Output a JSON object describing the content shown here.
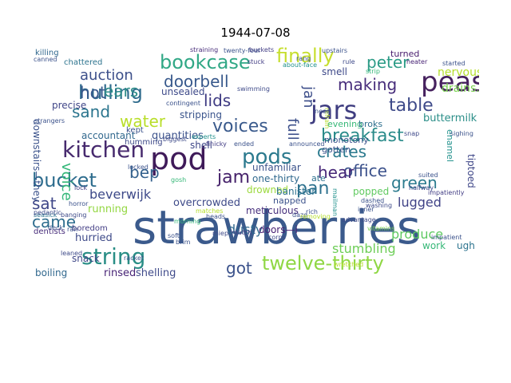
{
  "title": "1944-07-08",
  "palette": [
    "#440154",
    "#482878",
    "#3e4a89",
    "#31688e",
    "#26828e",
    "#1f9e89",
    "#35b779",
    "#6ece58",
    "#b5de2b",
    "#fde725"
  ],
  "words": [
    {
      "text": "strawberries",
      "color": "#3b5a8c"
    },
    {
      "text": "pod",
      "color": "#3f1a59"
    },
    {
      "text": "peas",
      "color": "#46215e"
    },
    {
      "text": "jars",
      "color": "#3f3d80"
    },
    {
      "text": "kitchen",
      "color": "#472a6e"
    },
    {
      "text": "string",
      "color": "#2a8e86"
    },
    {
      "text": "pods",
      "color": "#2c7a8e"
    },
    {
      "text": "bookcase",
      "color": "#31a886"
    },
    {
      "text": "hulling",
      "color": "#2f6b8d"
    },
    {
      "text": "bucket",
      "color": "#2e6d8e"
    },
    {
      "text": "finally",
      "color": "#c6de2e"
    },
    {
      "text": "twelve-thirty",
      "color": "#8fd744"
    },
    {
      "text": "voices",
      "color": "#3a5a8c"
    },
    {
      "text": "jam",
      "color": "#45216a"
    },
    {
      "text": "breakfast",
      "color": "#2a8b8a"
    },
    {
      "text": "table",
      "color": "#3e4a89"
    },
    {
      "text": "linings",
      "color": "#3a548c"
    },
    {
      "text": "pan",
      "color": "#2d718e"
    },
    {
      "text": "water",
      "color": "#b8de29"
    },
    {
      "text": "ears",
      "color": "#2f8c89"
    },
    {
      "text": "lids",
      "color": "#3e3a82"
    },
    {
      "text": "hot",
      "color": "#38598c"
    },
    {
      "text": "sand",
      "color": "#2b758e"
    },
    {
      "text": "making",
      "color": "#472d7b"
    },
    {
      "text": "peter",
      "color": "#2b9b86"
    },
    {
      "text": "doorbell",
      "color": "#38598c"
    },
    {
      "text": "green",
      "color": "#2c7b8e"
    },
    {
      "text": "office",
      "color": "#3b518b"
    },
    {
      "text": "crates",
      "color": "#2a798d"
    },
    {
      "text": "hear",
      "color": "#472878"
    },
    {
      "text": "came",
      "color": "#2e6d8e"
    },
    {
      "text": "got",
      "color": "#3b528b"
    },
    {
      "text": "sat",
      "color": "#3f4788"
    },
    {
      "text": "bep",
      "color": "#34618d"
    },
    {
      "text": "voice",
      "color": "#35b779"
    },
    {
      "text": "full",
      "color": "#3c4f8a"
    },
    {
      "text": "jan",
      "color": "#3d4e8a"
    },
    {
      "text": "pull",
      "color": "#3c508b"
    },
    {
      "text": "auction",
      "color": "#3c4f8a"
    },
    {
      "text": "dusty",
      "color": "#31688e"
    },
    {
      "text": "produce",
      "color": "#5ec962"
    },
    {
      "text": "stumbling",
      "color": "#6ece58"
    },
    {
      "text": "beverwijk",
      "color": "#3e4a89"
    },
    {
      "text": "lugged",
      "color": "#404387"
    },
    {
      "text": "drains.",
      "color": "#7ad151"
    },
    {
      "text": "nervously",
      "color": "#b5de2b"
    },
    {
      "text": "buttermilk",
      "color": "#2a8e88"
    },
    {
      "text": "quantities",
      "color": "#3b518b"
    },
    {
      "text": "overcrowded",
      "color": "#3e4a89"
    },
    {
      "text": "running",
      "color": "#93d741"
    },
    {
      "text": "hurried",
      "color": "#3e4a89"
    },
    {
      "text": "rinsed",
      "color": "#482476"
    },
    {
      "text": "shelling",
      "color": "#3f4a8a"
    },
    {
      "text": "boiling",
      "color": "#31688e"
    },
    {
      "text": "snack",
      "color": "#3f4788"
    },
    {
      "text": "doors—i",
      "color": "#482173"
    },
    {
      "text": "work",
      "color": "#37b878"
    },
    {
      "text": "ugh",
      "color": "#2c738e"
    },
    {
      "text": "drowned",
      "color": "#9bd93c"
    },
    {
      "text": "banister",
      "color": "#2d718e"
    },
    {
      "text": "popped",
      "color": "#60ca60"
    },
    {
      "text": "ate",
      "color": "#2d708e"
    },
    {
      "text": "one-thirty",
      "color": "#30698e"
    },
    {
      "text": "unfamiliar",
      "color": "#3b528b"
    },
    {
      "text": "stripping",
      "color": "#3a548c"
    },
    {
      "text": "shell",
      "color": "#3f4788"
    },
    {
      "text": "unsealed",
      "color": "#3e4a89"
    },
    {
      "text": "accountant",
      "color": "#31688e"
    },
    {
      "text": "precise",
      "color": "#404688"
    },
    {
      "text": "downstairs—they",
      "color": "#3b528b"
    },
    {
      "text": "meticulous",
      "color": "#472f7d"
    },
    {
      "text": "napped",
      "color": "#3b528b"
    },
    {
      "text": "smell",
      "color": "#3e4989"
    },
    {
      "text": "evening",
      "color": "#37b878"
    },
    {
      "text": "gotten",
      "color": "#3a548c"
    },
    {
      "text": "monotony",
      "color": "#3a538b"
    },
    {
      "text": "broks",
      "color": "#2e6f8e"
    },
    {
      "text": "enamel",
      "color": "#21918c"
    },
    {
      "text": "ding-dong—the",
      "color": "#37b878"
    },
    {
      "text": "sterilizing",
      "color": "#5ec962"
    },
    {
      "text": "tiptoed",
      "color": "#3f4788"
    },
    {
      "text": "turned",
      "color": "#481b6d"
    },
    {
      "text": "killing",
      "color": "#31688e"
    },
    {
      "text": "chattered",
      "color": "#2c738e"
    },
    {
      "text": "dentists",
      "color": "#472c7a"
    },
    {
      "text": "boredom",
      "color": "#433e85"
    },
    {
      "text": "humming",
      "color": "#3e4a89"
    },
    {
      "text": "kept",
      "color": "#3b528b"
    },
    {
      "text": "matches",
      "color": "#b5de2b"
    },
    {
      "text": "canned",
      "color": "#3b528b"
    },
    {
      "text": "strangers",
      "color": "#3b528b"
    },
    {
      "text": "seasick",
      "color": "#2c728e"
    },
    {
      "text": "pedantic",
      "color": "#3e4a89"
    },
    {
      "text": "straining",
      "color": "#472c7a"
    },
    {
      "text": "twenty-four",
      "color": "#3b528b"
    },
    {
      "text": "buckets",
      "color": "#433e85"
    },
    {
      "text": "about-face",
      "color": "#21918c"
    },
    {
      "text": "upstairs",
      "color": "#3b528b"
    },
    {
      "text": "heater",
      "color": "#482475"
    },
    {
      "text": "started",
      "color": "#3b528b"
    },
    {
      "text": "snap",
      "color": "#3e4989"
    },
    {
      "text": "sighing",
      "color": "#3b528b"
    },
    {
      "text": "suited",
      "color": "#3b528b"
    },
    {
      "text": "halfway",
      "color": "#3e4a89"
    },
    {
      "text": "impatiently",
      "color": "#433e85"
    },
    {
      "text": "impatient",
      "color": "#3b528b"
    },
    {
      "text": "wretched",
      "color": "#b5de2b"
    },
    {
      "text": "leaned",
      "color": "#3e4a89"
    },
    {
      "text": "locked",
      "color": "#3b528b"
    },
    {
      "text": "finicky",
      "color": "#433e85"
    },
    {
      "text": "gosh",
      "color": "#37b878"
    },
    {
      "text": "racket",
      "color": "#3b528b"
    },
    {
      "text": "mailman",
      "color": "#21918c"
    },
    {
      "text": "washing",
      "color": "#3e4a89"
    },
    {
      "text": "dashed",
      "color": "#3b528b"
    },
    {
      "text": "daze",
      "color": "#3b528b"
    },
    {
      "text": "rich",
      "color": "#3b528b"
    },
    {
      "text": "vitamins",
      "color": "#7ad151"
    },
    {
      "text": "miep",
      "color": "#3e4a89"
    },
    {
      "text": "morning",
      "color": "#35b779"
    },
    {
      "text": "soft",
      "color": "#3b528b"
    },
    {
      "text": "brim",
      "color": "#3b528b"
    },
    {
      "text": "lock",
      "color": "#433e85"
    },
    {
      "text": "banging",
      "color": "#3e4a89"
    },
    {
      "text": "ran",
      "color": "#3b528b"
    },
    {
      "text": "horror",
      "color": "#3b528b"
    },
    {
      "text": "biggest",
      "color": "#3e4a89"
    },
    {
      "text": "experts",
      "color": "#21918c"
    },
    {
      "text": "contingent",
      "color": "#3b528b"
    },
    {
      "text": "stuck",
      "color": "#433e85"
    },
    {
      "text": "rang",
      "color": "#3b528b"
    },
    {
      "text": "strip",
      "color": "#35b779"
    },
    {
      "text": "rule",
      "color": "#3e4a89"
    },
    {
      "text": "refrain",
      "color": "#b5de2b"
    },
    {
      "text": "need",
      "color": "#3b528b"
    },
    {
      "text": "swimming",
      "color": "#3e4a89"
    },
    {
      "text": "ended",
      "color": "#3b528b"
    },
    {
      "text": "announced",
      "color": "#3b528b"
    },
    {
      "text": "removing",
      "color": "#b5de2b"
    },
    {
      "text": "advantage",
      "color": "#3e4a89"
    },
    {
      "text": "inner",
      "color": "#3b528b"
    },
    {
      "text": "deck",
      "color": "#3b528b"
    },
    {
      "text": "match",
      "color": "#433e85"
    },
    {
      "text": "corps",
      "color": "#3e4a89"
    },
    {
      "text": "heads",
      "color": "#3b528b"
    }
  ]
}
